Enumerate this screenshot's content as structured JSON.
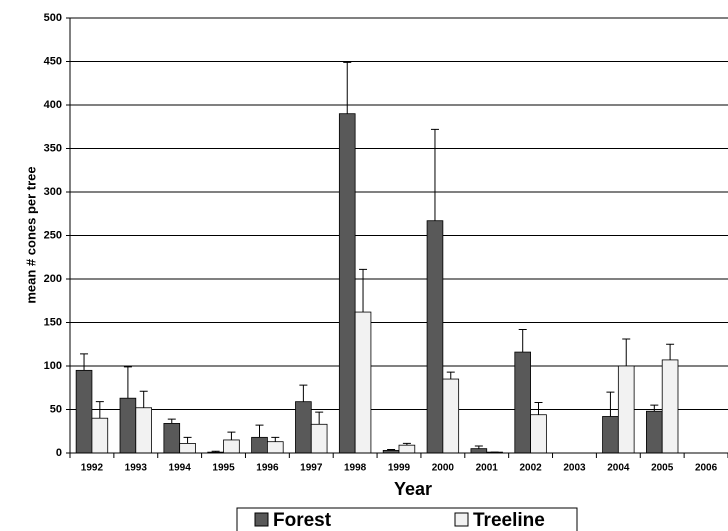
{
  "chart_data": {
    "type": "bar",
    "y_label": "mean # cones per tree",
    "x_label": "Year",
    "categories": [
      "1992",
      "1993",
      "1994",
      "1995",
      "1996",
      "1997",
      "1998",
      "1999",
      "2000",
      "2001",
      "2002",
      "2003",
      "2004",
      "2005",
      "2006"
    ],
    "series": [
      {
        "name": "Forest",
        "color": "#595959",
        "values": [
          95,
          63,
          34,
          1,
          18,
          59,
          390,
          3,
          267,
          5,
          116,
          0,
          42,
          48,
          0
        ],
        "errors": [
          19,
          36,
          5,
          1,
          14,
          19,
          59,
          1,
          105,
          3,
          26,
          0,
          28,
          7,
          0
        ]
      },
      {
        "name": "Treeline",
        "color": "#f2f2f2",
        "values": [
          40,
          52,
          11,
          15,
          13,
          33,
          162,
          9,
          85,
          1,
          44,
          0,
          100,
          107,
          0
        ],
        "errors": [
          19,
          19,
          7,
          9,
          5,
          14,
          49,
          2,
          8,
          0,
          14,
          0,
          31,
          18,
          0
        ]
      }
    ],
    "ylim": [
      0,
      500
    ],
    "yticks": [
      0,
      50,
      100,
      150,
      200,
      250,
      300,
      350,
      400,
      450,
      500
    ],
    "grid": true
  }
}
